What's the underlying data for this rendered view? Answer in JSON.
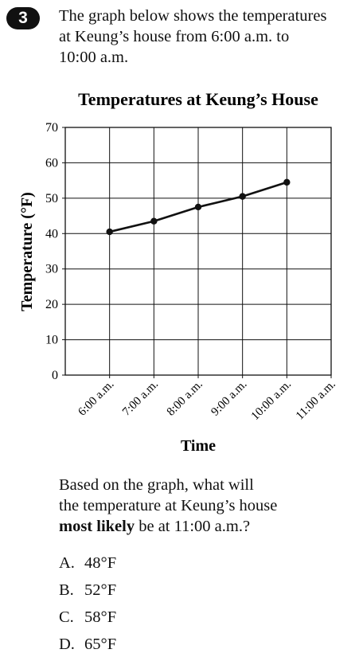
{
  "question": {
    "number": "3",
    "intro_lines": [
      "The graph below shows the temperatures",
      "at Keung’s house from 6:00 a.m. to",
      "10:00 a.m."
    ],
    "prompt_line1": "Based on the graph, what will",
    "prompt_line2": "the temperature at Keung’s house",
    "prompt_bold": "most likely",
    "prompt_rest": " be at 11:00 a.m.?",
    "choices": [
      {
        "letter": "A.",
        "text": "48°F"
      },
      {
        "letter": "B.",
        "text": "52°F"
      },
      {
        "letter": "C.",
        "text": "58°F"
      },
      {
        "letter": "D.",
        "text": "65°F"
      }
    ]
  },
  "chart_data": {
    "type": "line",
    "title": "Temperatures at Keung’s House",
    "xlabel": "Time",
    "ylabel": "Temperature (°F)",
    "categories": [
      "6:00 a.m.",
      "7:00 a.m.",
      "8:00 a.m.",
      "9:00 a.m.",
      "10:00 a.m.",
      "11:00 a.m."
    ],
    "series": [
      {
        "values": [
          40.5,
          43.5,
          47.5,
          50.5,
          54.5,
          null
        ]
      }
    ],
    "ylim": [
      0,
      70
    ],
    "yticks": [
      0,
      10,
      20,
      30,
      40,
      50,
      60,
      70
    ],
    "grid": true,
    "legend": "none",
    "colors": {
      "line": "#111111",
      "grid": "#111111"
    }
  }
}
